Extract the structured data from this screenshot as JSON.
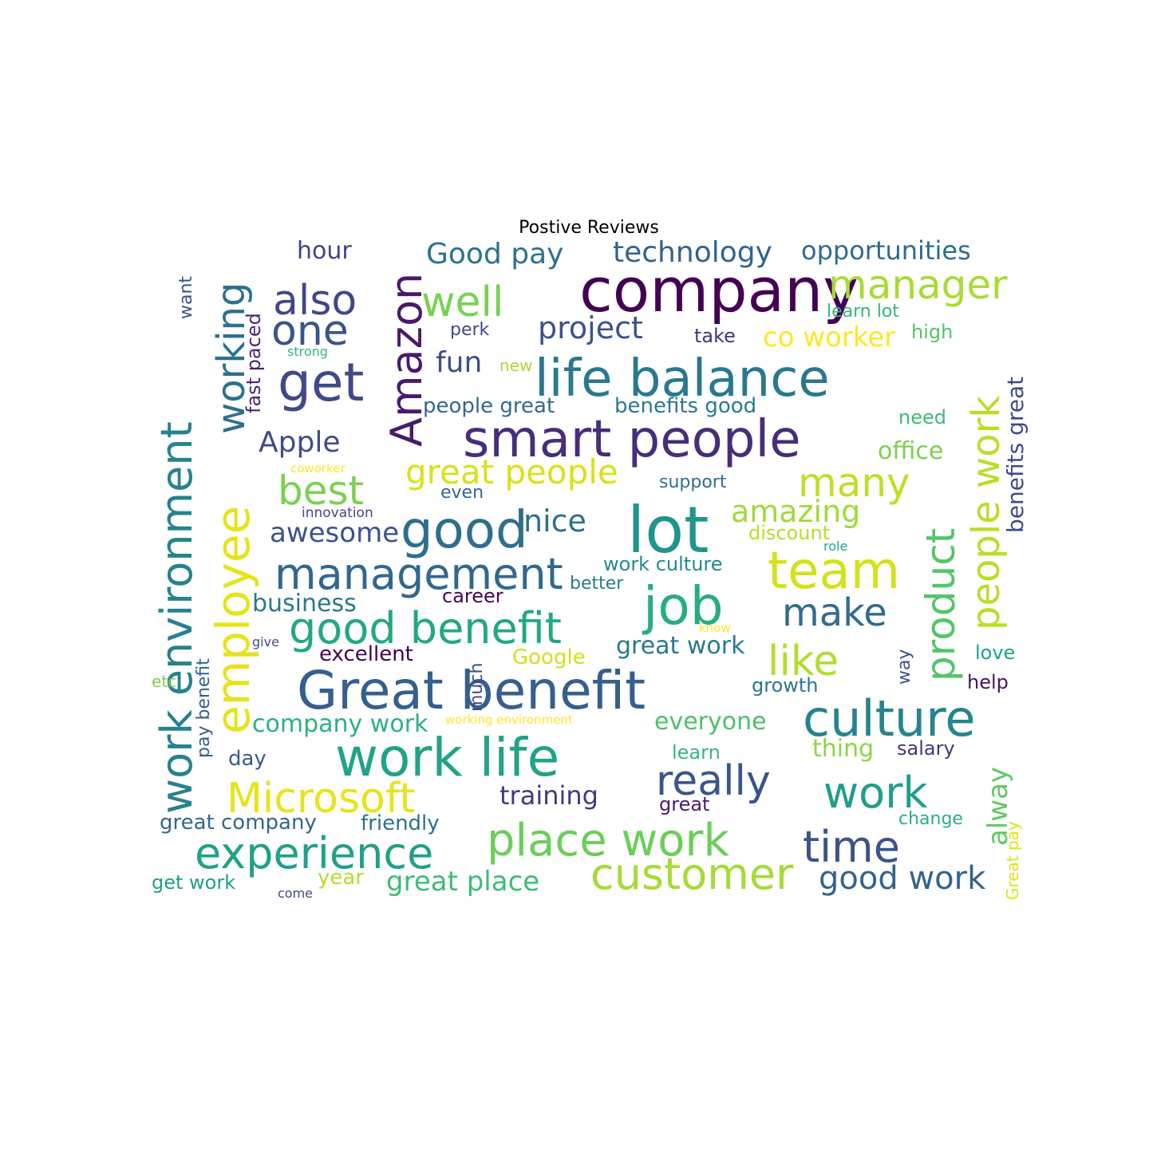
{
  "chart_data": {
    "type": "wordcloud",
    "title": "Postive Reviews",
    "words": [
      {
        "text": "company",
        "color": "#440154"
      },
      {
        "text": "life balance",
        "color": "#2a788e"
      },
      {
        "text": "smart people",
        "color": "#472d7b"
      },
      {
        "text": "Amazon",
        "color": "#481a6c"
      },
      {
        "text": "lot",
        "color": "#1f958b"
      },
      {
        "text": "team",
        "color": "#d2e21b"
      },
      {
        "text": "Great benefit",
        "color": "#355f8d"
      },
      {
        "text": "work life",
        "color": "#20a386"
      },
      {
        "text": "good",
        "color": "#2e6e8e"
      },
      {
        "text": "employee",
        "color": "#e5e419"
      },
      {
        "text": "work environment",
        "color": "#26828e"
      },
      {
        "text": "get",
        "color": "#3e4a89"
      },
      {
        "text": "management",
        "color": "#31688e"
      },
      {
        "text": "job",
        "color": "#27ad81"
      },
      {
        "text": "good benefit",
        "color": "#22a884"
      },
      {
        "text": "culture",
        "color": "#25848e"
      },
      {
        "text": "place work",
        "color": "#6ccd5a"
      },
      {
        "text": "customer",
        "color": "#a5db36"
      },
      {
        "text": "experience",
        "color": "#1fa187"
      },
      {
        "text": "time",
        "color": "#3b528b"
      },
      {
        "text": "really",
        "color": "#39558c"
      },
      {
        "text": "work",
        "color": "#1f9e89"
      },
      {
        "text": "Microsoft",
        "color": "#e7e419"
      },
      {
        "text": "product",
        "color": "#54c568"
      },
      {
        "text": "people work",
        "color": "#b8de29"
      },
      {
        "text": "working",
        "color": "#2c718e"
      },
      {
        "text": "well",
        "color": "#7ad151"
      },
      {
        "text": "manager",
        "color": "#a8db34"
      },
      {
        "text": "also",
        "color": "#3f4889"
      },
      {
        "text": "one",
        "color": "#3a538b"
      },
      {
        "text": "best",
        "color": "#7ad151"
      },
      {
        "text": "great people",
        "color": "#d8e219"
      },
      {
        "text": "many",
        "color": "#c0df25"
      },
      {
        "text": "make",
        "color": "#2f6c8e"
      },
      {
        "text": "like",
        "color": "#b2dd2d"
      },
      {
        "text": "good work",
        "color": "#33638d"
      },
      {
        "text": "project",
        "color": "#3b528b"
      },
      {
        "text": "Good pay",
        "color": "#2c728e"
      },
      {
        "text": "technology",
        "color": "#33638d"
      },
      {
        "text": "opportunities",
        "color": "#2f6b8e"
      },
      {
        "text": "Apple",
        "color": "#3e4c8a"
      },
      {
        "text": "nice",
        "color": "#2e6f8e"
      },
      {
        "text": "amazing",
        "color": "#9fda3a"
      },
      {
        "text": "awesome",
        "color": "#3b528b"
      },
      {
        "text": "fun",
        "color": "#3d4d8a"
      },
      {
        "text": "co worker",
        "color": "#fde725"
      },
      {
        "text": "hour",
        "color": "#414487"
      },
      {
        "text": "benefits great",
        "color": "#3e4a89"
      },
      {
        "text": "great place",
        "color": "#3dbc74"
      },
      {
        "text": "alway",
        "color": "#5ec962"
      },
      {
        "text": "training",
        "color": "#453781"
      },
      {
        "text": "everyone",
        "color": "#4ac16d"
      },
      {
        "text": "company work",
        "color": "#2cb17e"
      },
      {
        "text": "business",
        "color": "#2a788e"
      },
      {
        "text": "great work",
        "color": "#2a788e"
      },
      {
        "text": "office",
        "color": "#7ad151"
      },
      {
        "text": "fast paced",
        "color": "#482475"
      },
      {
        "text": "people great",
        "color": "#31688e"
      },
      {
        "text": "benefits good",
        "color": "#2a788e"
      },
      {
        "text": "excellent",
        "color": "#440154"
      },
      {
        "text": "Google",
        "color": "#d0e11c"
      },
      {
        "text": "thing",
        "color": "#8bd646"
      },
      {
        "text": "great company",
        "color": "#31688e"
      },
      {
        "text": "friendly",
        "color": "#2d708e"
      },
      {
        "text": "career",
        "color": "#450559"
      },
      {
        "text": "discount",
        "color": "#b5de2b"
      },
      {
        "text": "work culture",
        "color": "#23898e"
      },
      {
        "text": "day",
        "color": "#365d8d"
      },
      {
        "text": "much",
        "color": "#3e4989"
      },
      {
        "text": "pay benefit",
        "color": "#355f8d"
      },
      {
        "text": "growth",
        "color": "#2a768e"
      },
      {
        "text": "help",
        "color": "#481467"
      },
      {
        "text": "salary",
        "color": "#46337f"
      },
      {
        "text": "great",
        "color": "#481b6d"
      },
      {
        "text": "learn",
        "color": "#35b779"
      },
      {
        "text": "change",
        "color": "#2ab07f"
      },
      {
        "text": "Great pay",
        "color": "#dde318"
      },
      {
        "text": "year",
        "color": "#b5de2b"
      },
      {
        "text": "get work",
        "color": "#1f9f88"
      },
      {
        "text": "learn lot",
        "color": "#35b779"
      },
      {
        "text": "high",
        "color": "#54c568"
      },
      {
        "text": "take",
        "color": "#46337f"
      },
      {
        "text": "perk",
        "color": "#3e4a89"
      },
      {
        "text": "need",
        "color": "#3dbc74"
      },
      {
        "text": "support",
        "color": "#2d708e"
      },
      {
        "text": "even",
        "color": "#31688e"
      },
      {
        "text": "better",
        "color": "#2a788e"
      },
      {
        "text": "love",
        "color": "#1fa187"
      },
      {
        "text": "way",
        "color": "#3b528b"
      },
      {
        "text": "want",
        "color": "#3b528b"
      },
      {
        "text": "new",
        "color": "#a8db34"
      },
      {
        "text": "strong",
        "color": "#35b779"
      },
      {
        "text": "etc",
        "color": "#7ad151"
      },
      {
        "text": "give",
        "color": "#3e4a89"
      },
      {
        "text": "come",
        "color": "#3e4a89"
      },
      {
        "text": "innovation",
        "color": "#414487"
      },
      {
        "text": "coworker",
        "color": "#fde725"
      },
      {
        "text": "role",
        "color": "#22a884"
      },
      {
        "text": "know",
        "color": "#fde725"
      },
      {
        "text": "working environment",
        "color": "#fde725"
      }
    ]
  }
}
